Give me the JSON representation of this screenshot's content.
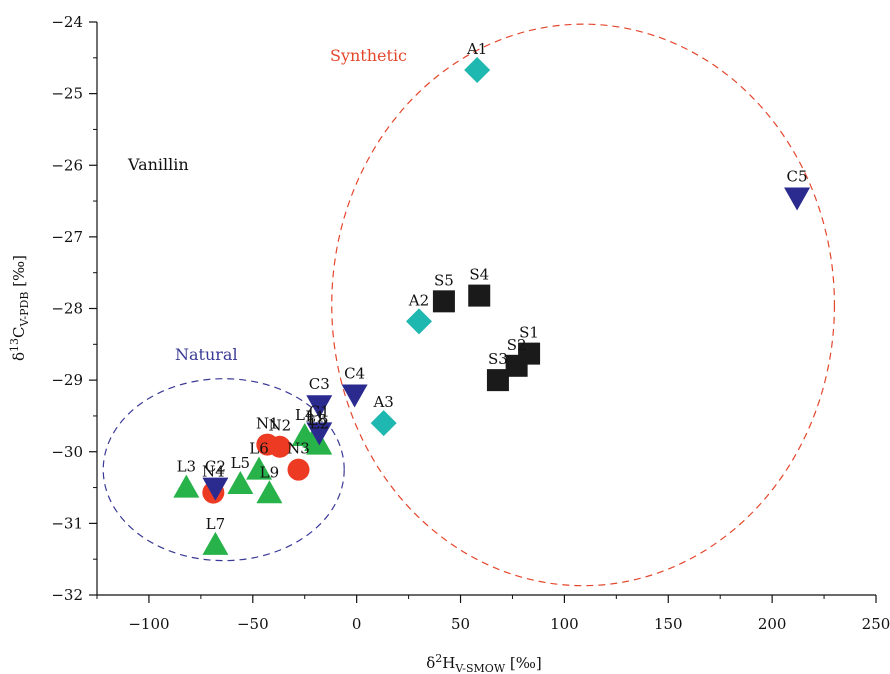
{
  "chart_data": {
    "type": "scatter",
    "title": "",
    "panel_text": "Vanillin",
    "xlabel": {
      "prefix": "δ",
      "sup": "2",
      "main": "H",
      "sub": "V-SMOW",
      "unit": " [‰]"
    },
    "ylabel": {
      "prefix": "δ",
      "sup": "13",
      "main": "C",
      "sub": "V-PDB",
      "unit": " [‰]"
    },
    "xlim": [
      -125,
      250
    ],
    "ylim": [
      -32,
      -24
    ],
    "xticks": [
      -100,
      -50,
      0,
      50,
      100,
      150,
      200,
      250
    ],
    "xtick_labels": [
      "−100",
      "−50",
      "0",
      "50",
      "100",
      "150",
      "200",
      "250"
    ],
    "yticks": [
      -24,
      -25,
      -26,
      -27,
      -28,
      -29,
      -30,
      -31,
      -32
    ],
    "ytick_labels": [
      "−24",
      "−25",
      "−26",
      "−27",
      "−28",
      "−29",
      "−30",
      "−31",
      "−32"
    ],
    "grid": false,
    "legend": "none",
    "series": [
      {
        "marker": "square",
        "color": "#1a1a1a",
        "points": [
          {
            "label": "S1",
            "x": 83,
            "y": -28.63
          },
          {
            "label": "S2",
            "x": 77,
            "y": -28.8
          },
          {
            "label": "S3",
            "x": 68,
            "y": -29.0
          },
          {
            "label": "S4",
            "x": 59,
            "y": -27.82
          },
          {
            "label": "S5",
            "x": 42,
            "y": -27.9
          }
        ]
      },
      {
        "marker": "diamond",
        "color": "#1fb8b0",
        "points": [
          {
            "label": "A1",
            "x": 58,
            "y": -24.67
          },
          {
            "label": "A2",
            "x": 30,
            "y": -28.18
          },
          {
            "label": "A3",
            "x": 13,
            "y": -29.6
          }
        ]
      },
      {
        "marker": "triangle-down",
        "color": "#2b2a8f",
        "points": [
          {
            "label": "C1",
            "x": -18,
            "y": -29.73
          },
          {
            "label": "C2",
            "x": -68,
            "y": -30.5
          },
          {
            "label": "C3",
            "x": -18,
            "y": -29.35
          },
          {
            "label": "C4",
            "x": -1,
            "y": -29.2
          },
          {
            "label": "C5",
            "x": 212,
            "y": -26.45
          }
        ]
      },
      {
        "marker": "circle",
        "color": "#ec3b22",
        "points": [
          {
            "label": "N1",
            "x": -43,
            "y": -29.9
          },
          {
            "label": "N2",
            "x": -37,
            "y": -29.93
          },
          {
            "label": "N3",
            "x": -28,
            "y": -30.25
          },
          {
            "label": "N4",
            "x": -69,
            "y": -30.57
          }
        ]
      },
      {
        "marker": "triangle-up",
        "color": "#27b24a",
        "points": [
          {
            "label": "L1",
            "x": -20,
            "y": -29.8
          },
          {
            "label": "L2",
            "x": -18,
            "y": -29.9
          },
          {
            "label": "L3",
            "x": -82,
            "y": -30.5
          },
          {
            "label": "L4",
            "x": -25,
            "y": -29.78
          },
          {
            "label": "L5",
            "x": -56,
            "y": -30.45
          },
          {
            "label": "L6",
            "x": -47,
            "y": -30.25
          },
          {
            "label": "L7",
            "x": -68,
            "y": -31.3
          },
          {
            "label": "L8",
            "x": -19,
            "y": -29.85
          },
          {
            "label": "L9",
            "x": -42,
            "y": -30.58
          }
        ]
      }
    ],
    "annotations": [
      {
        "text": "Synthetic",
        "color": "#e4462c"
      },
      {
        "text": "Natural",
        "color": "#3a3a96"
      }
    ],
    "regions": [
      {
        "name": "synthetic",
        "cx": 109,
        "cy": -27.95,
        "rx": 121,
        "ry": 3.92,
        "color": "#e4462c",
        "dash": "dashed"
      },
      {
        "name": "natural",
        "cx": -64,
        "cy": -30.25,
        "rx": 58,
        "ry": 1.27,
        "color": "#3a3a96",
        "dash": "dashed"
      }
    ]
  }
}
